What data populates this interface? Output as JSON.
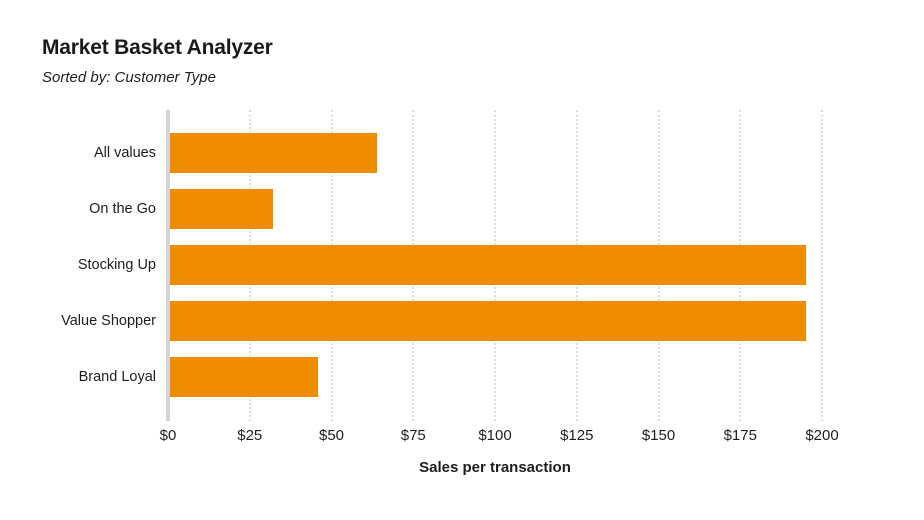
{
  "header": {
    "title": "Market Basket Analyzer",
    "subtitle": "Sorted by: Customer Type"
  },
  "chart_data": {
    "type": "bar",
    "orientation": "horizontal",
    "title": "Market Basket Analyzer",
    "subtitle": "Sorted by: Customer Type",
    "categories": [
      "All values",
      "On the Go",
      "Stocking Up",
      "Value Shopper",
      "Brand Loyal"
    ],
    "values": [
      64,
      32,
      195,
      195,
      46
    ],
    "xlabel": "Sales per transaction",
    "ylabel": "",
    "xlim": [
      0,
      200
    ],
    "tick_values": [
      0,
      25,
      50,
      75,
      100,
      125,
      150,
      175,
      200
    ],
    "tick_labels": [
      "$0",
      "$25",
      "$50",
      "$75",
      "$100",
      "$125",
      "$150",
      "$175",
      "$200"
    ],
    "grid": "vertical-dotted",
    "legend": "none",
    "bar_color": "#F08C00",
    "axis_color": "#D4D4D4",
    "grid_color": "#DCDCDC",
    "text_color": "#1E1E1E"
  }
}
